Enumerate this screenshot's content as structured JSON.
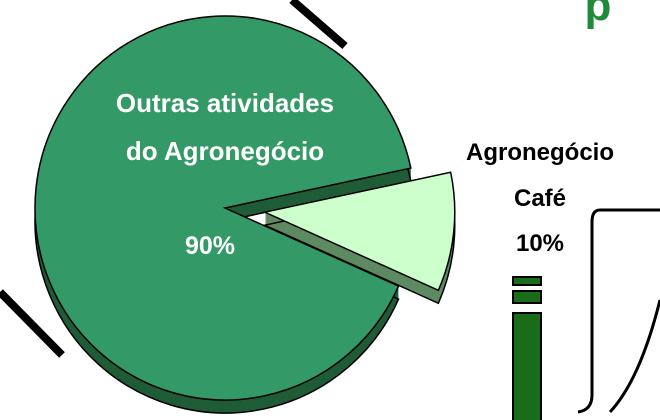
{
  "chart_data": {
    "type": "pie",
    "title": "p",
    "categories": [
      [
        "Outras atividades",
        "do Agronegócio"
      ],
      [
        "Agronegócio",
        "Café"
      ]
    ],
    "values": [
      90,
      10
    ],
    "value_labels": [
      "90%",
      "10%"
    ],
    "colors": [
      "#339966",
      "#ccffcc"
    ],
    "side_colors": [
      "#1f5c37",
      "#5e8a62"
    ],
    "label_colors": [
      "#ffffff",
      "#000000"
    ]
  }
}
